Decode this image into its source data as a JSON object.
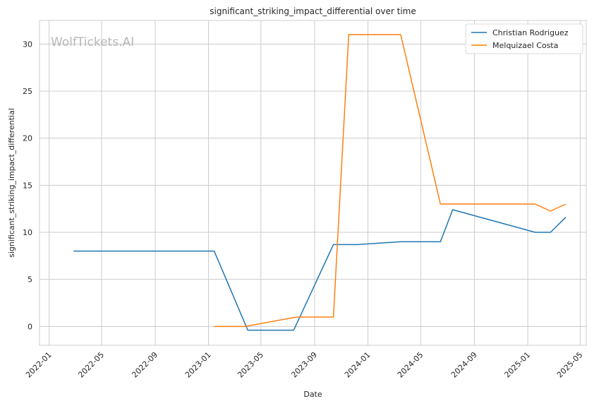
{
  "chart_data": {
    "type": "line",
    "title": "significant_striking_impact_differential over time",
    "xlabel": "Date",
    "ylabel": "significant_striking_impact_differential",
    "watermark": "WolfTickets.AI",
    "xlim": [
      "2021-12-10",
      "2025-05-15"
    ],
    "ylim": [
      -2,
      32.5
    ],
    "x_ticks": [
      "2022-01",
      "2022-05",
      "2022-09",
      "2023-01",
      "2023-05",
      "2023-09",
      "2024-01",
      "2024-05",
      "2024-09",
      "2025-01",
      "2025-05"
    ],
    "y_ticks": [
      0,
      5,
      10,
      15,
      20,
      25,
      30
    ],
    "grid": true,
    "legend_position": "top-right",
    "series": [
      {
        "name": "Christian Rodriguez",
        "color": "#1f77b4",
        "x": [
          "2022-02-26",
          "2023-01-14",
          "2023-04-01",
          "2023-07-15",
          "2023-10-14",
          "2023-12-09",
          "2024-03-16",
          "2024-06-15",
          "2024-07-13",
          "2025-01-18",
          "2025-02-22",
          "2025-03-29"
        ],
        "y": [
          8,
          8,
          -0.4,
          -0.4,
          8.7,
          8.7,
          9,
          9,
          12.4,
          10,
          10,
          11.6
        ]
      },
      {
        "name": "Melquizael Costa",
        "color": "#ff7f0e",
        "x": [
          "2023-01-14",
          "2023-03-25",
          "2023-07-22",
          "2023-10-14",
          "2023-11-18",
          "2024-03-16",
          "2024-06-15",
          "2024-07-13",
          "2025-01-18",
          "2025-02-22",
          "2025-03-29"
        ],
        "y": [
          0,
          0,
          1,
          1,
          31,
          31,
          13,
          13,
          13,
          12.25,
          13
        ]
      }
    ]
  }
}
